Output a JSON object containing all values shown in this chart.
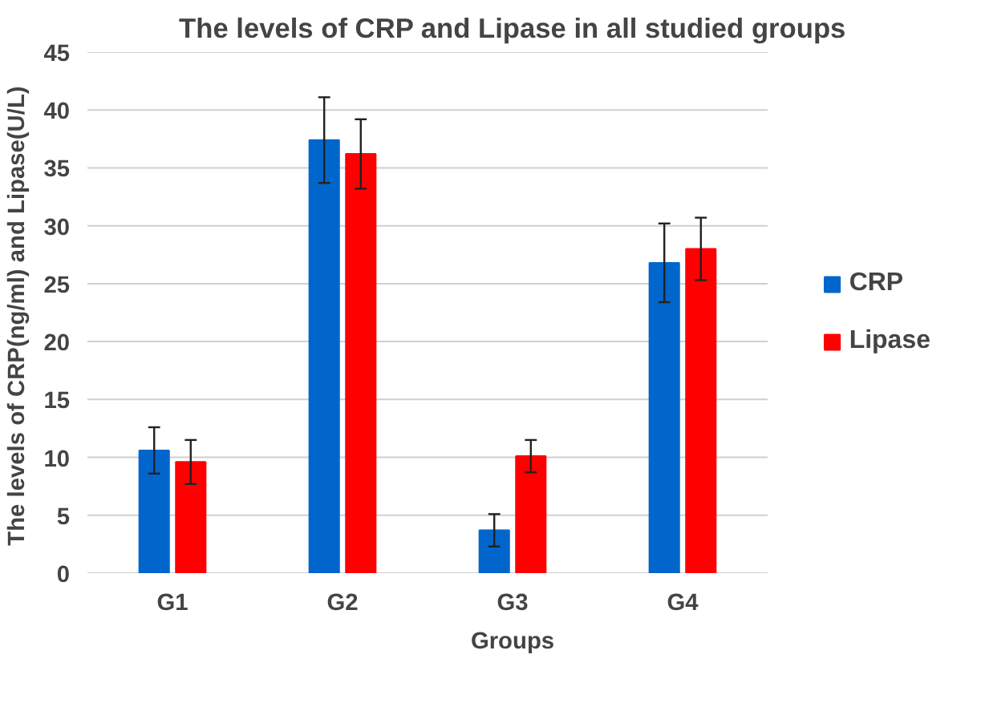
{
  "chart_data": {
    "type": "bar",
    "title": "The levels of CRP and Lipase in all studied groups",
    "xlabel": "Groups",
    "ylabel": "The levels of CRP(ng/ml) and  Lipase(U/L)",
    "categories": [
      "G1",
      "G2",
      "G3",
      "G4"
    ],
    "series": [
      {
        "name": "CRP",
        "color": "#0066cc",
        "values": [
          10.6,
          37.4,
          3.7,
          26.8
        ],
        "errors": [
          2.0,
          3.7,
          1.4,
          3.4
        ]
      },
      {
        "name": "Lipase",
        "color": "#ff0000",
        "values": [
          9.6,
          36.2,
          10.1,
          28.0
        ],
        "errors": [
          1.9,
          3.0,
          1.4,
          2.7
        ]
      }
    ],
    "ylim": [
      0,
      45
    ],
    "yticks": [
      0,
      5,
      10,
      15,
      20,
      25,
      30,
      35,
      40,
      45
    ],
    "grid": "y",
    "legend": "right"
  }
}
